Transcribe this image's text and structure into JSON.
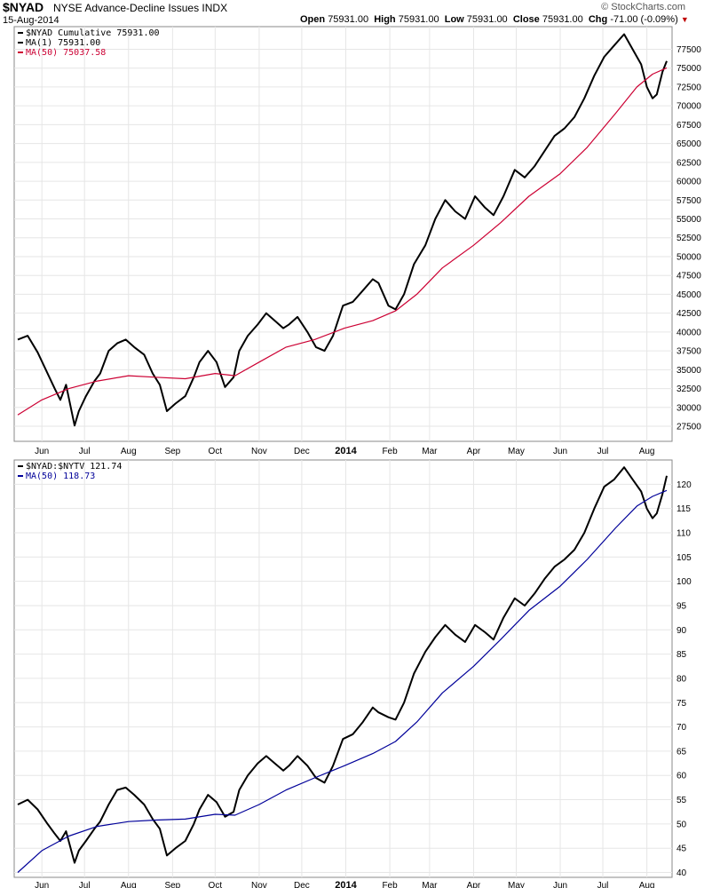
{
  "header": {
    "symbol": "$NYAD",
    "description": "NYSE Advance-Decline Issues INDX",
    "date": "15-Aug-2014",
    "open_label": "Open",
    "open": "75931.00",
    "high_label": "High",
    "high": "75931.00",
    "low_label": "Low",
    "low": "75931.00",
    "close_label": "Close",
    "close": "75931.00",
    "chg_label": "Chg",
    "chg": "-71.00 (-0.09%)",
    "brand": "© StockCharts.com"
  },
  "colors": {
    "price": "#000000",
    "ma_top": "#cc0033",
    "ma_bottom": "#000099",
    "grid": "#e6e6e6",
    "frame": "#888888"
  },
  "chart_data": [
    {
      "type": "line",
      "x_ticks": [
        "Jun",
        "Jul",
        "Aug",
        "Sep",
        "Oct",
        "Nov",
        "Dec",
        "2014",
        "Feb",
        "Mar",
        "Apr",
        "May",
        "Jun",
        "Jul",
        "Aug"
      ],
      "y_ticks": [
        27500,
        30000,
        32500,
        35000,
        37500,
        40000,
        42500,
        45000,
        47500,
        50000,
        52500,
        55000,
        57500,
        60000,
        62500,
        65000,
        67500,
        70000,
        72500,
        75000,
        77500
      ],
      "ylim": [
        25500,
        80500
      ],
      "grid": true,
      "legend_position": "top-left",
      "legend": [
        "$NYAD Cumulative 75931.00",
        "MA(1) 75931.00",
        "MA(50) 75037.58"
      ],
      "series": [
        {
          "name": "MA(1)",
          "points": [
            [
              "2013-05-15",
              39000
            ],
            [
              "2013-05-22",
              39500
            ],
            [
              "2013-05-29",
              37300
            ],
            [
              "2013-06-05",
              34500
            ],
            [
              "2013-06-10",
              32500
            ],
            [
              "2013-06-14",
              31000
            ],
            [
              "2013-06-18",
              33000
            ],
            [
              "2013-06-24",
              27600
            ],
            [
              "2013-06-27",
              29500
            ],
            [
              "2013-07-02",
              31500
            ],
            [
              "2013-07-08",
              33500
            ],
            [
              "2013-07-12",
              34500
            ],
            [
              "2013-07-18",
              37500
            ],
            [
              "2013-07-24",
              38500
            ],
            [
              "2013-07-30",
              39000
            ],
            [
              "2013-08-05",
              38000
            ],
            [
              "2013-08-12",
              37000
            ],
            [
              "2013-08-18",
              34500
            ],
            [
              "2013-08-23",
              33000
            ],
            [
              "2013-08-28",
              29500
            ],
            [
              "2013-09-03",
              30500
            ],
            [
              "2013-09-10",
              31500
            ],
            [
              "2013-09-16",
              34000
            ],
            [
              "2013-09-20",
              36000
            ],
            [
              "2013-09-26",
              37500
            ],
            [
              "2013-10-02",
              36000
            ],
            [
              "2013-10-08",
              32700
            ],
            [
              "2013-10-14",
              34000
            ],
            [
              "2013-10-18",
              37500
            ],
            [
              "2013-10-24",
              39500
            ],
            [
              "2013-10-31",
              41000
            ],
            [
              "2013-11-06",
              42500
            ],
            [
              "2013-11-12",
              41500
            ],
            [
              "2013-11-18",
              40500
            ],
            [
              "2013-11-22",
              41000
            ],
            [
              "2013-11-28",
              42000
            ],
            [
              "2013-12-05",
              40000
            ],
            [
              "2013-12-11",
              38000
            ],
            [
              "2013-12-17",
              37500
            ],
            [
              "2013-12-23",
              39500
            ],
            [
              "2013-12-30",
              43500
            ],
            [
              "2014-01-06",
              44000
            ],
            [
              "2014-01-13",
              45500
            ],
            [
              "2014-01-20",
              47000
            ],
            [
              "2014-01-24",
              46500
            ],
            [
              "2014-01-31",
              43500
            ],
            [
              "2014-02-05",
              43000
            ],
            [
              "2014-02-11",
              45000
            ],
            [
              "2014-02-18",
              49000
            ],
            [
              "2014-02-26",
              51500
            ],
            [
              "2014-03-05",
              55000
            ],
            [
              "2014-03-12",
              57500
            ],
            [
              "2014-03-19",
              56000
            ],
            [
              "2014-03-26",
              55000
            ],
            [
              "2014-04-02",
              58000
            ],
            [
              "2014-04-09",
              56500
            ],
            [
              "2014-04-15",
              55500
            ],
            [
              "2014-04-22",
              58000
            ],
            [
              "2014-04-30",
              61500
            ],
            [
              "2014-05-07",
              60500
            ],
            [
              "2014-05-14",
              62000
            ],
            [
              "2014-05-21",
              64000
            ],
            [
              "2014-05-28",
              66000
            ],
            [
              "2014-06-04",
              67000
            ],
            [
              "2014-06-11",
              68500
            ],
            [
              "2014-06-18",
              71000
            ],
            [
              "2014-06-25",
              74000
            ],
            [
              "2014-07-02",
              76500
            ],
            [
              "2014-07-09",
              78000
            ],
            [
              "2014-07-16",
              79500
            ],
            [
              "2014-07-22",
              77500
            ],
            [
              "2014-07-28",
              75500
            ],
            [
              "2014-08-01",
              72500
            ],
            [
              "2014-08-05",
              71000
            ],
            [
              "2014-08-08",
              71500
            ],
            [
              "2014-08-12",
              74500
            ],
            [
              "2014-08-15",
              75931
            ]
          ]
        },
        {
          "name": "MA(50)",
          "points": [
            [
              "2013-05-15",
              29000
            ],
            [
              "2013-06-01",
              31000
            ],
            [
              "2013-06-20",
              32500
            ],
            [
              "2013-07-10",
              33500
            ],
            [
              "2013-08-01",
              34200
            ],
            [
              "2013-08-20",
              34000
            ],
            [
              "2013-09-10",
              33800
            ],
            [
              "2013-10-01",
              34500
            ],
            [
              "2013-10-15",
              34200
            ],
            [
              "2013-11-01",
              36000
            ],
            [
              "2013-11-20",
              38000
            ],
            [
              "2013-12-10",
              39000
            ],
            [
              "2013-12-31",
              40500
            ],
            [
              "2014-01-20",
              41500
            ],
            [
              "2014-02-05",
              42800
            ],
            [
              "2014-02-20",
              45000
            ],
            [
              "2014-03-10",
              48500
            ],
            [
              "2014-04-01",
              51500
            ],
            [
              "2014-04-20",
              54500
            ],
            [
              "2014-05-10",
              58000
            ],
            [
              "2014-06-01",
              61000
            ],
            [
              "2014-06-20",
              64500
            ],
            [
              "2014-07-10",
              69000
            ],
            [
              "2014-07-25",
              72500
            ],
            [
              "2014-08-05",
              74200
            ],
            [
              "2014-08-15",
              75037
            ]
          ]
        }
      ]
    },
    {
      "type": "line",
      "x_ticks": [
        "Jun",
        "Jul",
        "Aug",
        "Sep",
        "Oct",
        "Nov",
        "Dec",
        "2014",
        "Feb",
        "Mar",
        "Apr",
        "May",
        "Jun",
        "Jul",
        "Aug"
      ],
      "y_ticks": [
        40,
        45,
        50,
        55,
        60,
        65,
        70,
        75,
        80,
        85,
        90,
        95,
        100,
        105,
        110,
        115,
        120
      ],
      "ylim": [
        39,
        125
      ],
      "grid": true,
      "legend_position": "top-left",
      "legend": [
        "$NYAD:$NYTV 121.74",
        "MA(50) 118.73"
      ],
      "series": [
        {
          "name": "$NYAD:$NYTV",
          "points": [
            [
              "2013-05-15",
              54000
            ],
            [
              "2013-05-22",
              55000
            ],
            [
              "2013-05-29",
              53000
            ],
            [
              "2013-06-05",
              50000
            ],
            [
              "2013-06-10",
              48000
            ],
            [
              "2013-06-14",
              46500
            ],
            [
              "2013-06-18",
              48500
            ],
            [
              "2013-06-24",
              42000
            ],
            [
              "2013-06-27",
              44500
            ],
            [
              "2013-07-02",
              46500
            ],
            [
              "2013-07-08",
              49000
            ],
            [
              "2013-07-12",
              50500
            ],
            [
              "2013-07-18",
              54000
            ],
            [
              "2013-07-24",
              57000
            ],
            [
              "2013-07-30",
              57500
            ],
            [
              "2013-08-05",
              56000
            ],
            [
              "2013-08-12",
              54000
            ],
            [
              "2013-08-18",
              51000
            ],
            [
              "2013-08-23",
              49000
            ],
            [
              "2013-08-28",
              43500
            ],
            [
              "2013-09-03",
              45000
            ],
            [
              "2013-09-10",
              46500
            ],
            [
              "2013-09-16",
              50000
            ],
            [
              "2013-09-20",
              53000
            ],
            [
              "2013-09-26",
              56000
            ],
            [
              "2013-10-02",
              54500
            ],
            [
              "2013-10-08",
              51500
            ],
            [
              "2013-10-14",
              52500
            ],
            [
              "2013-10-18",
              57000
            ],
            [
              "2013-10-24",
              60000
            ],
            [
              "2013-10-31",
              62500
            ],
            [
              "2013-11-06",
              64000
            ],
            [
              "2013-11-12",
              62500
            ],
            [
              "2013-11-18",
              61000
            ],
            [
              "2013-11-22",
              62000
            ],
            [
              "2013-11-28",
              64000
            ],
            [
              "2013-12-05",
              62000
            ],
            [
              "2013-12-11",
              59500
            ],
            [
              "2013-12-17",
              58500
            ],
            [
              "2013-12-23",
              62000
            ],
            [
              "2013-12-30",
              67500
            ],
            [
              "2014-01-06",
              68500
            ],
            [
              "2014-01-13",
              71000
            ],
            [
              "2014-01-20",
              74000
            ],
            [
              "2014-01-24",
              73000
            ],
            [
              "2014-01-31",
              72000
            ],
            [
              "2014-02-05",
              71500
            ],
            [
              "2014-02-11",
              75000
            ],
            [
              "2014-02-18",
              81000
            ],
            [
              "2014-02-26",
              85500
            ],
            [
              "2014-03-05",
              88500
            ],
            [
              "2014-03-12",
              91000
            ],
            [
              "2014-03-19",
              89000
            ],
            [
              "2014-03-26",
              87500
            ],
            [
              "2014-04-02",
              91000
            ],
            [
              "2014-04-09",
              89500
            ],
            [
              "2014-04-15",
              88000
            ],
            [
              "2014-04-22",
              92500
            ],
            [
              "2014-04-30",
              96500
            ],
            [
              "2014-05-07",
              95000
            ],
            [
              "2014-05-14",
              97500
            ],
            [
              "2014-05-21",
              100500
            ],
            [
              "2014-05-28",
              103000
            ],
            [
              "2014-06-04",
              104500
            ],
            [
              "2014-06-11",
              106500
            ],
            [
              "2014-06-18",
              110000
            ],
            [
              "2014-06-25",
              115000
            ],
            [
              "2014-07-02",
              119500
            ],
            [
              "2014-07-09",
              121000
            ],
            [
              "2014-07-16",
              123500
            ],
            [
              "2014-07-22",
              121000
            ],
            [
              "2014-07-28",
              118500
            ],
            [
              "2014-08-01",
              115000
            ],
            [
              "2014-08-05",
              113000
            ],
            [
              "2014-08-08",
              114000
            ],
            [
              "2014-08-12",
              118000
            ],
            [
              "2014-08-15",
              121740
            ]
          ]
        },
        {
          "name": "MA(50)",
          "points": [
            [
              "2013-05-15",
              40000
            ],
            [
              "2013-06-01",
              44500
            ],
            [
              "2013-06-20",
              47500
            ],
            [
              "2013-07-10",
              49500
            ],
            [
              "2013-08-01",
              50500
            ],
            [
              "2013-08-20",
              50800
            ],
            [
              "2013-09-10",
              51000
            ],
            [
              "2013-10-01",
              52000
            ],
            [
              "2013-10-15",
              51800
            ],
            [
              "2013-11-01",
              54000
            ],
            [
              "2013-11-20",
              57000
            ],
            [
              "2013-12-10",
              59500
            ],
            [
              "2013-12-31",
              62000
            ],
            [
              "2014-01-20",
              64500
            ],
            [
              "2014-02-05",
              67000
            ],
            [
              "2014-02-20",
              71000
            ],
            [
              "2014-03-10",
              77000
            ],
            [
              "2014-04-01",
              82500
            ],
            [
              "2014-04-20",
              88000
            ],
            [
              "2014-05-10",
              94000
            ],
            [
              "2014-06-01",
              99000
            ],
            [
              "2014-06-20",
              104500
            ],
            [
              "2014-07-10",
              111000
            ],
            [
              "2014-07-25",
              115500
            ],
            [
              "2014-08-05",
              117500
            ],
            [
              "2014-08-15",
              118730
            ]
          ]
        }
      ]
    }
  ]
}
